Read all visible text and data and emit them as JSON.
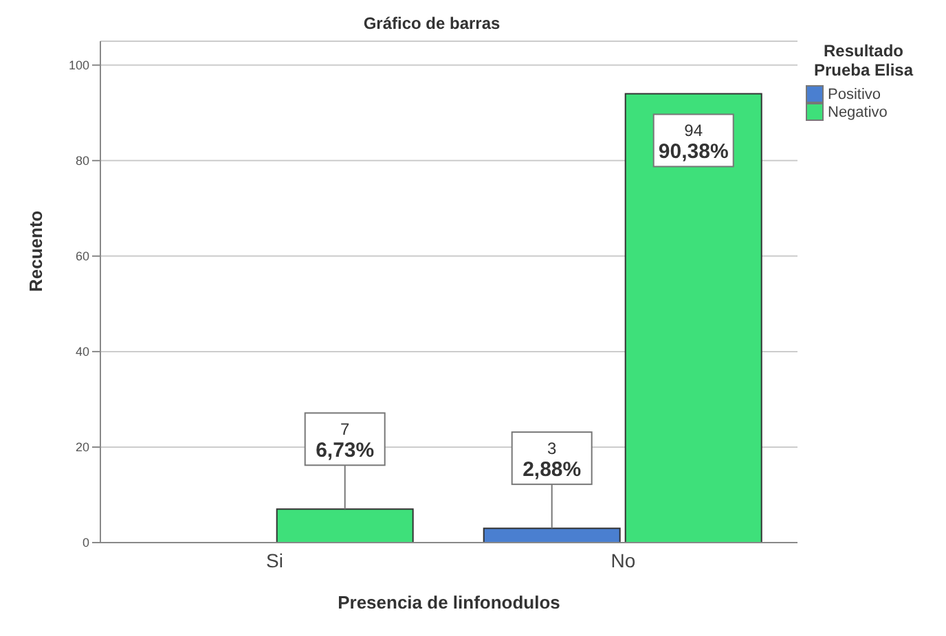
{
  "chart_data": {
    "type": "bar",
    "title": "Gráfico de barras",
    "xlabel": "Presencia de linfonodulos",
    "ylabel": "Recuento",
    "legend_title": "Resultado Prueba Elisa",
    "categories": [
      "Si",
      "No"
    ],
    "series": [
      {
        "name": "Positivo",
        "color": "#4a7fd0",
        "values": [
          null,
          3
        ],
        "value_labels": [
          null,
          "3\n2,88%"
        ]
      },
      {
        "name": "Negativo",
        "color": "#3ee07a",
        "values": [
          7,
          94
        ],
        "value_labels": [
          "7\n6,73%",
          "94\n90,38%"
        ]
      }
    ],
    "ylim": [
      0,
      105
    ],
    "yticks": [
      0,
      20,
      40,
      60,
      80,
      100
    ],
    "grid": "y",
    "legend": "top right"
  }
}
